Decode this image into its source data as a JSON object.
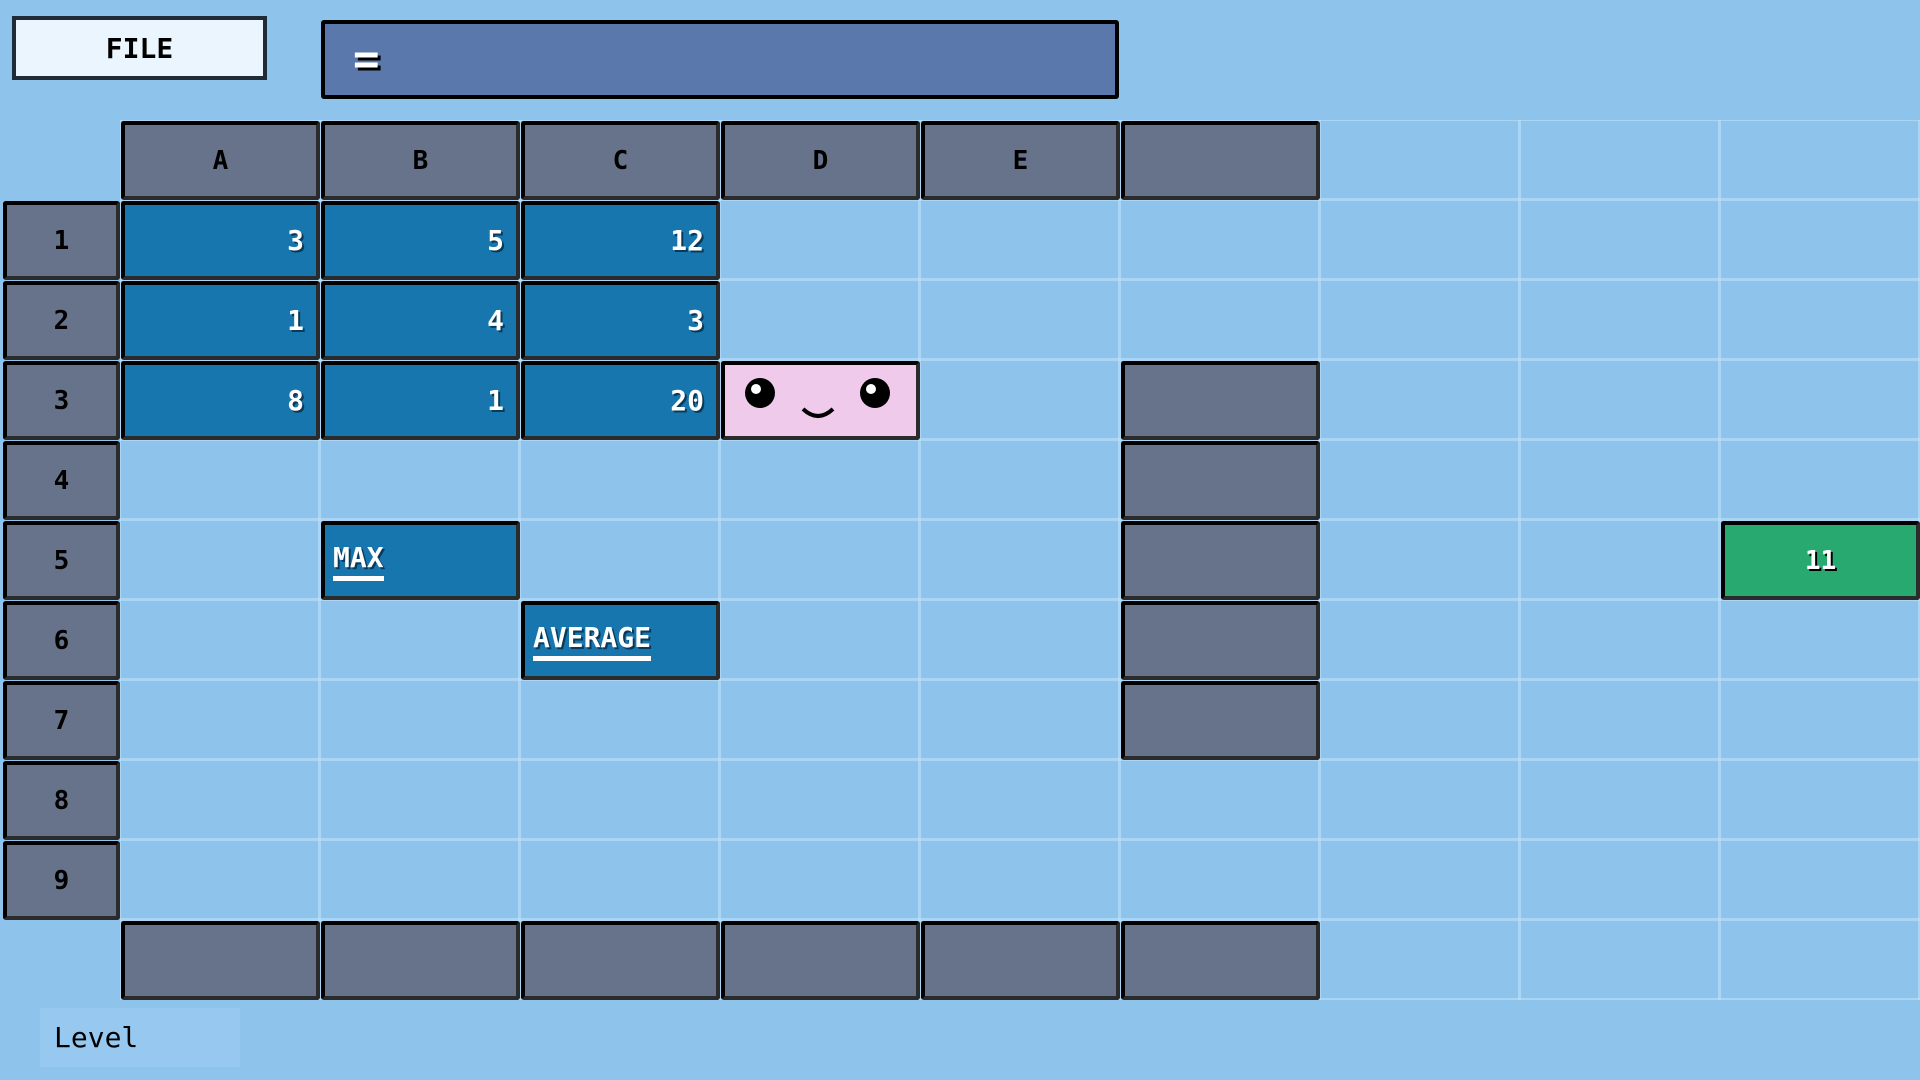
{
  "toolbar": {
    "file_label": "FILE",
    "formula_icon": "equals-icon",
    "formula_value": ""
  },
  "columns": [
    "A",
    "B",
    "C",
    "D",
    "E",
    ""
  ],
  "rows": [
    "1",
    "2",
    "3",
    "4",
    "5",
    "6",
    "7",
    "8",
    "9"
  ],
  "cells": [
    {
      "ref": "A1",
      "value": "3"
    },
    {
      "ref": "B1",
      "value": "5"
    },
    {
      "ref": "C1",
      "value": "12"
    },
    {
      "ref": "A2",
      "value": "1"
    },
    {
      "ref": "B2",
      "value": "4"
    },
    {
      "ref": "C2",
      "value": "3"
    },
    {
      "ref": "A3",
      "value": "8"
    },
    {
      "ref": "B3",
      "value": "1"
    },
    {
      "ref": "C3",
      "value": "20"
    }
  ],
  "functions": [
    {
      "ref": "B5",
      "label": "MAX"
    },
    {
      "ref": "C6",
      "label": "AVERAGE"
    }
  ],
  "character": {
    "ref": "D3",
    "icon": "smiley-face-icon"
  },
  "blocks": [
    "F3",
    "F4",
    "F5",
    "F6",
    "F7"
  ],
  "bottom_blocks": [
    "A10",
    "B10",
    "C10",
    "D10",
    "E10",
    "F10"
  ],
  "goal": {
    "ref": "I5",
    "value": "11"
  },
  "status": {
    "level_label": "Level"
  },
  "colors": {
    "background": "#8EC3EC",
    "cell_blue": "#1776AE",
    "block_grey": "#67738B",
    "goal_green": "#27A970",
    "character_pink": "#F0CAEA",
    "formula_bar": "#5B78AD"
  }
}
